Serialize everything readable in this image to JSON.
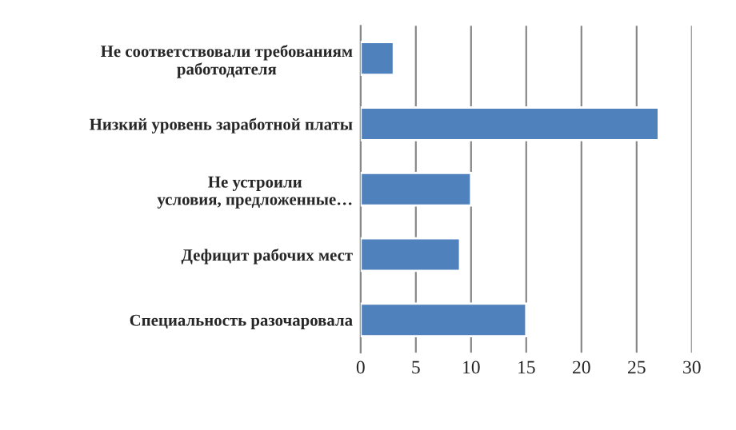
{
  "chart_data": {
    "type": "bar",
    "orientation": "horizontal",
    "categories": [
      "Не соответствовали требованиям\nработодателя",
      "Низкий уровень заработной платы",
      "Не устроили\nусловия, предложенные…",
      "Дефицит рабочих мест",
      "Специальность разочаровала"
    ],
    "values": [
      3,
      27,
      10,
      9,
      15
    ],
    "color": "#4f81bd",
    "xlim": [
      0,
      30
    ],
    "xticks": [
      0,
      5,
      10,
      15,
      20,
      25,
      30
    ],
    "grid": "x",
    "legend": false
  }
}
